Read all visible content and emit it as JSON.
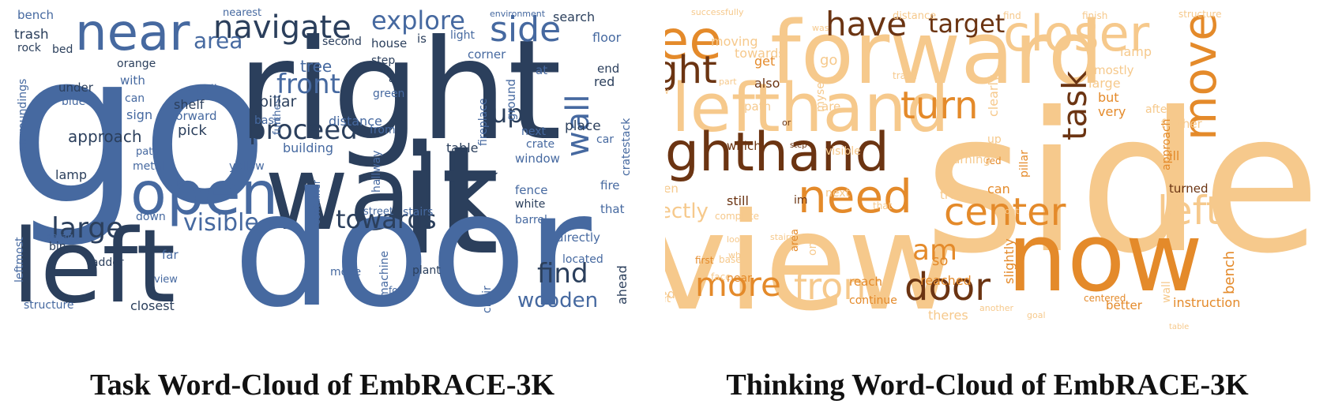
{
  "clouds": [
    {
      "caption": "Task Word-Cloud of EmbRACE-3K",
      "palette": {
        "dark": "#2b3f5c",
        "mid": "#4669a0",
        "light": "#7f9bc6"
      },
      "words": [
        "go",
        "right",
        "walk",
        "it",
        "door",
        "left",
        "near",
        "open",
        "navigate",
        "explore",
        "side",
        "area",
        "front",
        "proceed",
        "wall",
        "up",
        "towards",
        "large",
        "visible",
        "find",
        "wooden",
        "approach",
        "pick",
        "shelf",
        "small",
        "forward",
        "sign",
        "with",
        "can",
        "under",
        "blue",
        "bed",
        "rock",
        "trash",
        "bench",
        "nearest",
        "second",
        "house",
        "is",
        "light",
        "orange",
        "step",
        "a",
        "tree",
        "green",
        "at",
        "end",
        "red",
        "floor",
        "corner",
        "environment",
        "search",
        "furthest",
        "pillar",
        "base",
        "distance",
        "fireplace",
        "ground",
        "building",
        "from",
        "next",
        "crate",
        "place",
        "car",
        "table",
        "window",
        "yellow",
        "metal",
        "path",
        "lamp",
        "surroundings",
        "hallway",
        "stairs",
        "street",
        "white",
        "barrel",
        "fence",
        "fire",
        "that",
        "cratestack",
        "container",
        "down",
        "far",
        "view",
        "ladder",
        "bin",
        "garage",
        "leftmost",
        "structure",
        "closest",
        "move",
        "machine",
        "for",
        "plant",
        "chair",
        "directly",
        "located",
        "ahead"
      ]
    },
    {
      "caption": "Thinking Word-Cloud of EmbRACE-3K",
      "palette": {
        "dark": "#6b3412",
        "mid": "#e48a2a",
        "light": "#f6c98c"
      },
      "words": [
        "side",
        "view",
        "forward",
        "now",
        "lefthand",
        "righthand",
        "see",
        "right",
        "need",
        "closer",
        "have",
        "target",
        "move",
        "task",
        "turn",
        "center",
        "left",
        "door",
        "more",
        "front",
        "am",
        "its",
        "successfully",
        "was",
        "distance",
        "find",
        "finish",
        "structure",
        "moving",
        "towards",
        "lamp",
        "get",
        "go",
        "part",
        "window",
        "also",
        "myself",
        "trash",
        "mostly",
        "large",
        "but",
        "very",
        "after",
        "close",
        "path",
        "clearly",
        "again",
        "are",
        "further",
        "align",
        "which",
        "step",
        "or",
        "visible",
        "turning",
        "up",
        "red",
        "approach",
        "ill",
        "pillar",
        "turned",
        "wooden",
        "still",
        "im",
        "next",
        "tree",
        "can",
        "directly",
        "that",
        "dont",
        "complete",
        "stairs",
        "area",
        "one",
        "look",
        "white",
        "first",
        "base",
        "face",
        "near",
        "reach",
        "reached",
        "slightly",
        "so",
        "open",
        "ive",
        "moved",
        "at",
        "continue",
        "theres",
        "another",
        "goal",
        "centered",
        "better",
        "wall",
        "instruction",
        "bench",
        "table"
      ]
    }
  ]
}
